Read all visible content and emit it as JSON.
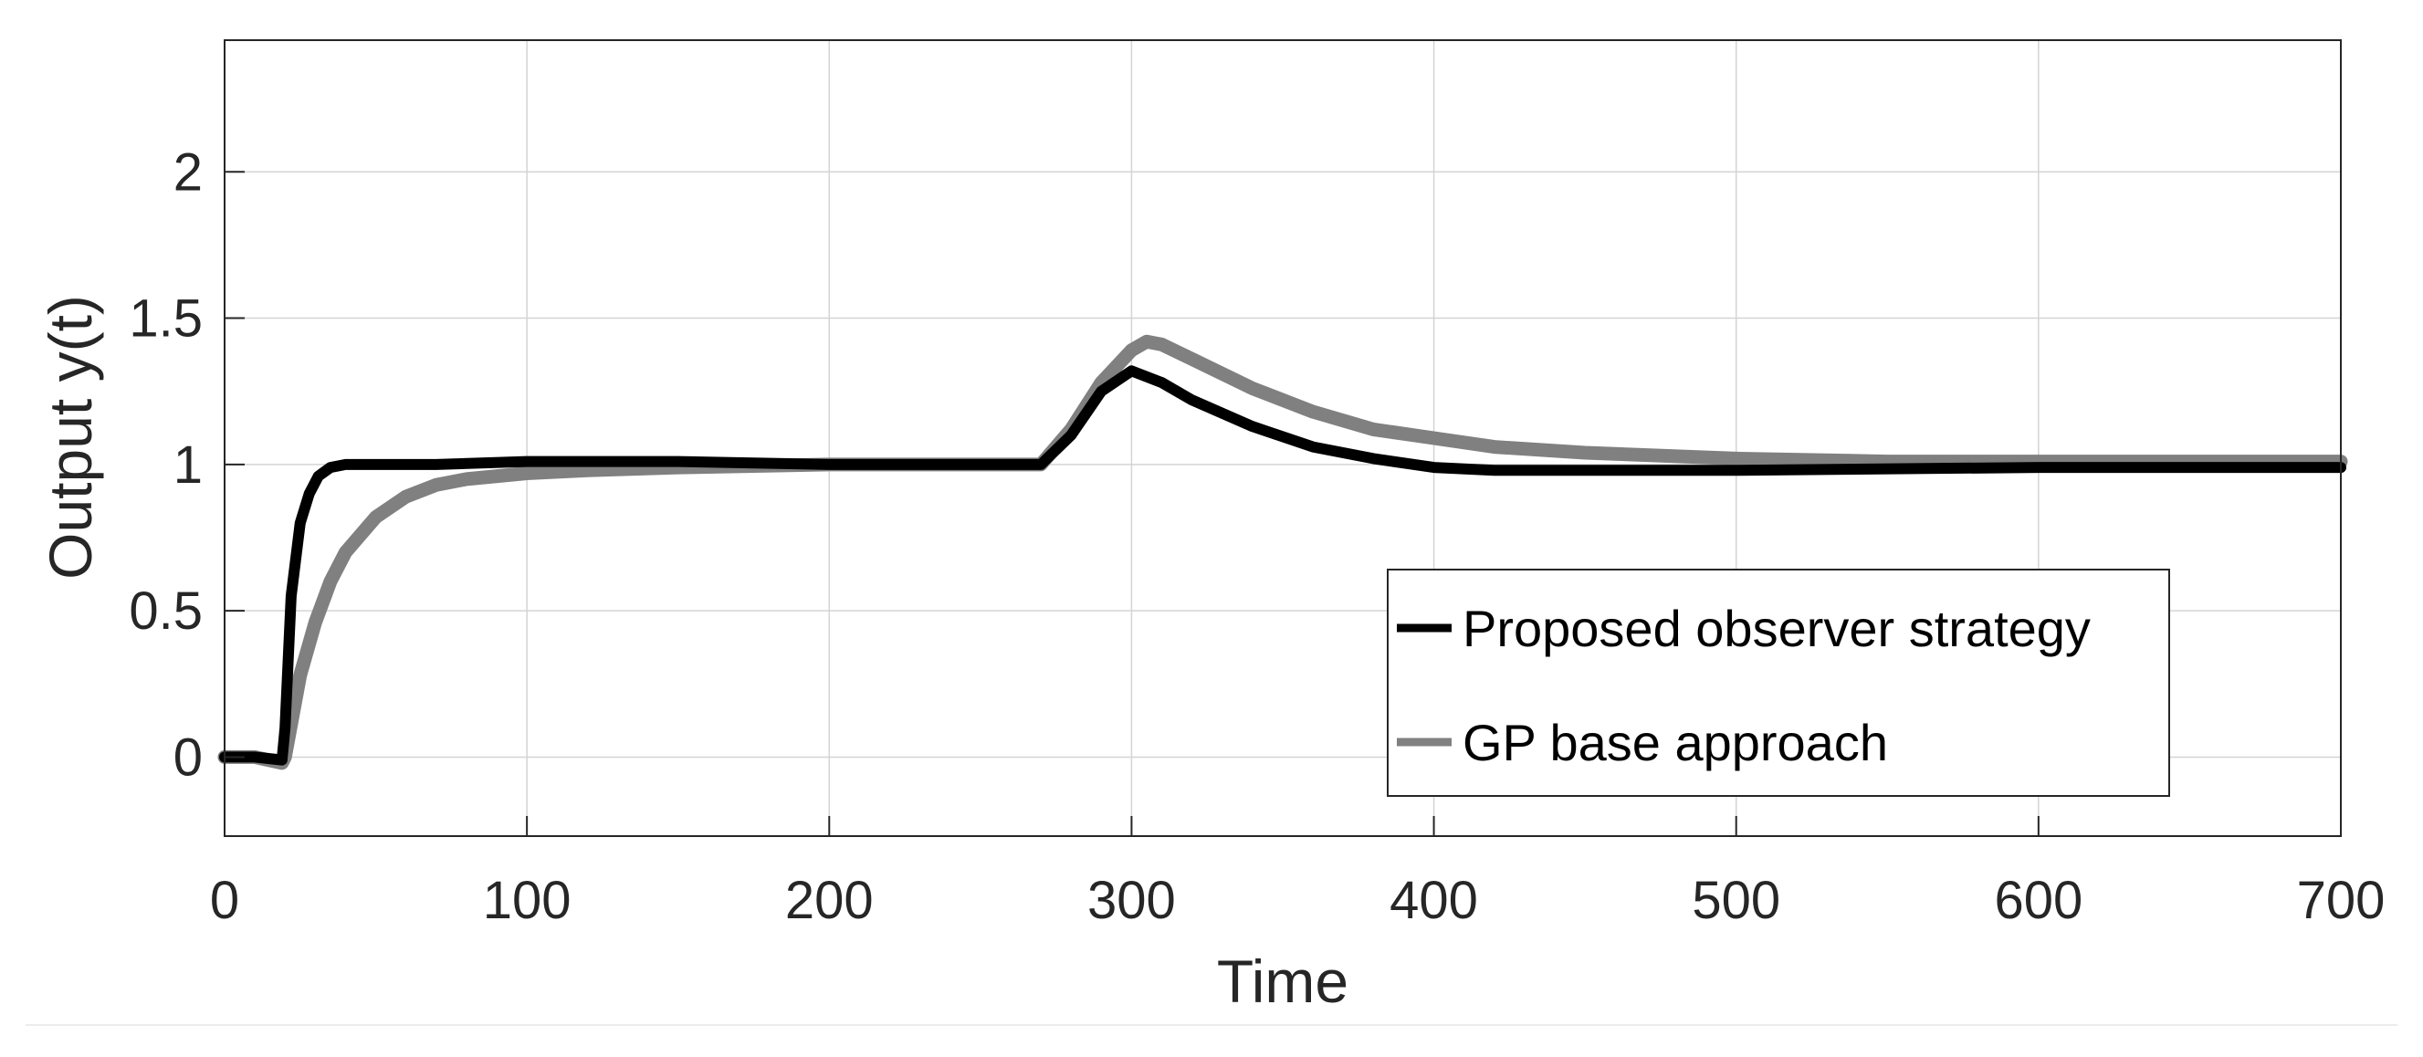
{
  "chart_data": {
    "type": "line",
    "title": "",
    "xlabel": "Time",
    "ylabel": "Output y(t)",
    "xlim": [
      0,
      700
    ],
    "ylim": [
      -0.27,
      2.45
    ],
    "xticks": [
      0,
      100,
      200,
      300,
      400,
      500,
      600,
      700
    ],
    "yticks": [
      0,
      0.5,
      1,
      1.5,
      2
    ],
    "xtick_labels": [
      "0",
      "100",
      "200",
      "300",
      "400",
      "500",
      "600",
      "700"
    ],
    "ytick_labels": [
      "0",
      "0.5",
      "1",
      "1.5",
      "2"
    ],
    "grid": true,
    "legend": {
      "position": "lower-right"
    },
    "colors": {
      "proposed": "#000000",
      "gp": "#808080",
      "grid": "#d4d4d4",
      "axis": "#262626"
    },
    "series": [
      {
        "name": "Proposed observer strategy",
        "color": "#000000",
        "x": [
          0,
          10,
          19,
          20,
          22,
          25,
          28,
          31,
          35,
          40,
          50,
          70,
          100,
          150,
          200,
          250,
          270,
          280,
          290,
          300,
          310,
          320,
          340,
          360,
          380,
          400,
          420,
          450,
          500,
          600,
          700
        ],
        "y": [
          0,
          0,
          -0.01,
          0.1,
          0.55,
          0.8,
          0.9,
          0.96,
          0.99,
          1.0,
          1.0,
          1.0,
          1.01,
          1.01,
          1.0,
          1.0,
          1.0,
          1.1,
          1.25,
          1.32,
          1.28,
          1.22,
          1.13,
          1.06,
          1.02,
          0.99,
          0.98,
          0.98,
          0.98,
          0.99,
          0.99
        ]
      },
      {
        "name": "GP base approach",
        "color": "#808080",
        "x": [
          0,
          10,
          19,
          20,
          25,
          30,
          35,
          40,
          50,
          60,
          70,
          80,
          100,
          120,
          150,
          200,
          250,
          270,
          280,
          290,
          300,
          305,
          310,
          320,
          340,
          360,
          380,
          400,
          420,
          450,
          500,
          550,
          600,
          700
        ],
        "y": [
          0,
          0,
          -0.02,
          0.0,
          0.28,
          0.46,
          0.6,
          0.7,
          0.82,
          0.89,
          0.93,
          0.95,
          0.97,
          0.98,
          0.99,
          1.0,
          1.0,
          1.0,
          1.12,
          1.28,
          1.39,
          1.42,
          1.41,
          1.36,
          1.26,
          1.18,
          1.12,
          1.09,
          1.06,
          1.04,
          1.02,
          1.01,
          1.01,
          1.01
        ]
      }
    ]
  }
}
